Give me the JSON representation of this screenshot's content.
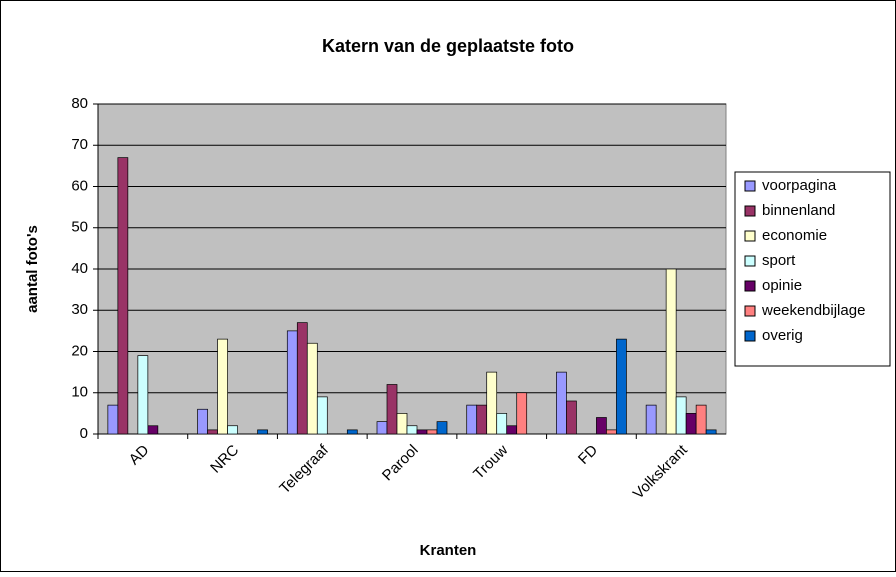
{
  "chart_data": {
    "type": "bar",
    "title": "Katern van de geplaatste foto",
    "x_label": "Kranten",
    "y_label": "aantal foto's",
    "categories": [
      "AD",
      "NRC",
      "Telegraaf",
      "Parool",
      "Trouw",
      "FD",
      "Volkskrant"
    ],
    "series": [
      {
        "name": "voorpagina",
        "color": "#9999ff",
        "values": [
          7,
          6,
          25,
          3,
          7,
          15,
          7
        ]
      },
      {
        "name": "binnenland",
        "color": "#993366",
        "values": [
          67,
          1,
          27,
          12,
          7,
          8,
          0
        ]
      },
      {
        "name": "economie",
        "color": "#ffffcc",
        "values": [
          0,
          23,
          22,
          5,
          15,
          0,
          40
        ]
      },
      {
        "name": "sport",
        "color": "#ccffff",
        "values": [
          19,
          2,
          9,
          2,
          5,
          0,
          9
        ]
      },
      {
        "name": "opinie",
        "color": "#660066",
        "values": [
          2,
          0,
          0,
          1,
          2,
          4,
          5
        ]
      },
      {
        "name": "weekendbijlage",
        "color": "#ff8080",
        "values": [
          0,
          0,
          0,
          1,
          10,
          1,
          7
        ]
      },
      {
        "name": "overig",
        "color": "#0066cc",
        "values": [
          0,
          1,
          1,
          3,
          0,
          23,
          1
        ]
      }
    ],
    "ylim": [
      0,
      80
    ],
    "yticks": [
      0,
      10,
      20,
      30,
      40,
      50,
      60,
      70,
      80
    ],
    "grid": true,
    "legend": "right"
  }
}
